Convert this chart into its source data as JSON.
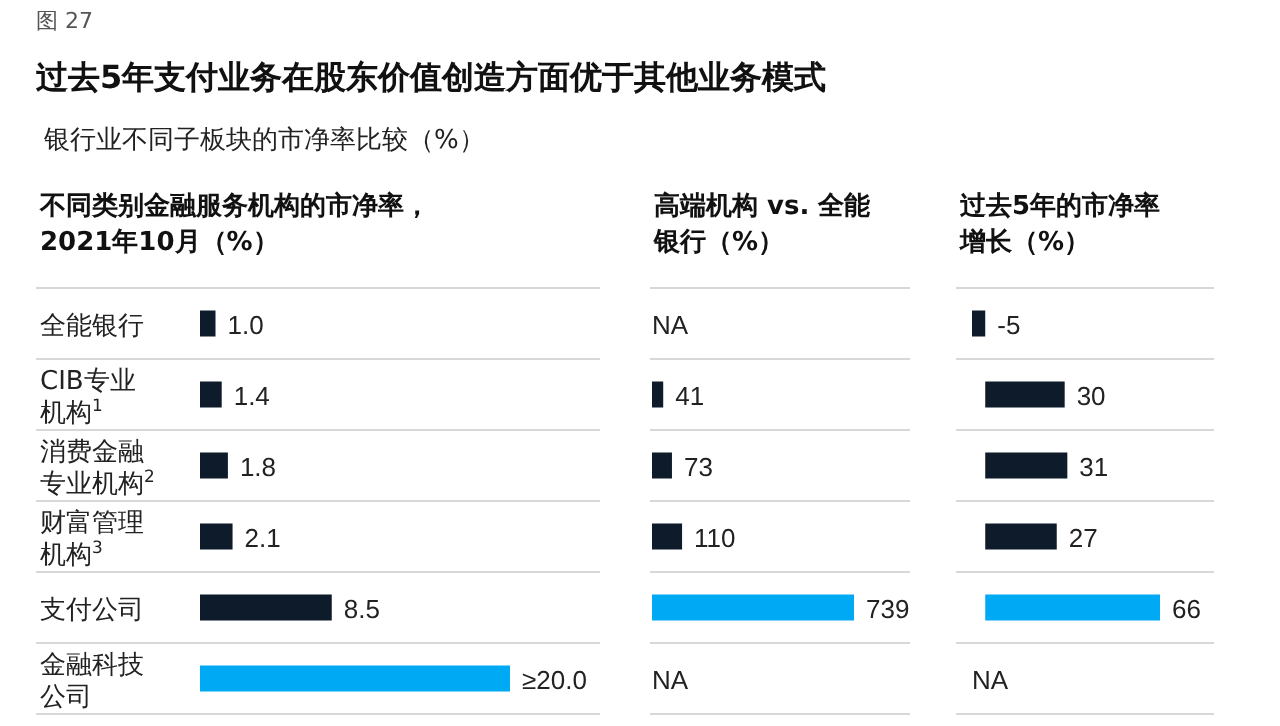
{
  "chart_data": [
    {
      "type": "other",
      "title": "过去5年支付业务在股东价值创造方面优于其他业务模式",
      "subtitle": "银行业不同子板块的市净率比较（%）",
      "annotations": [
        "图 27"
      ]
    },
    {
      "type": "bar",
      "orientation": "horizontal",
      "title": "不同类别金融服务机构的市净率，2021年10月（%）",
      "categories": [
        "全能银行",
        "CIB专业机构$^{1}$",
        "消费金融专业机构$^{2}$",
        "财富管理机构$^{3}$",
        "支付公司",
        "金融科技公司"
      ],
      "values": [
        1.0,
        1.4,
        1.8,
        2.1,
        8.5,
        20.0
      ],
      "colors": [
        "#0d1b2a",
        "#0d1b2a",
        "#0d1b2a",
        "#0d1b2a",
        "#0d1b2a",
        "#00a9f4"
      ],
      "value_labels": [
        "1.0",
        "1.4",
        "1.8",
        "2.1",
        "8.5",
        "≥20.0"
      ]
    },
    {
      "type": "bar",
      "orientation": "horizontal",
      "title": "高端机构 vs. 全能银行（%）",
      "values": [
        null,
        41,
        73,
        110,
        739,
        null
      ],
      "colors": [
        "#0d1b2a",
        "#0d1b2a",
        "#0d1b2a",
        "#0d1b2a",
        "#00a9f4",
        "#0d1b2a"
      ],
      "value_labels": [
        "NA",
        "41",
        "73",
        "110",
        "739",
        "NA"
      ]
    },
    {
      "type": "bar",
      "orientation": "horizontal",
      "title": "过去5年的市净率增长（%）",
      "values": [
        -5,
        30,
        31,
        27,
        66,
        null
      ],
      "colors": [
        "#0d1b2a",
        "#0d1b2a",
        "#0d1b2a",
        "#0d1b2a",
        "#00a9f4",
        "#0d1b2a"
      ],
      "value_labels": [
        "-5",
        "30",
        "31",
        "27",
        "66",
        "NA"
      ]
    }
  ]
}
